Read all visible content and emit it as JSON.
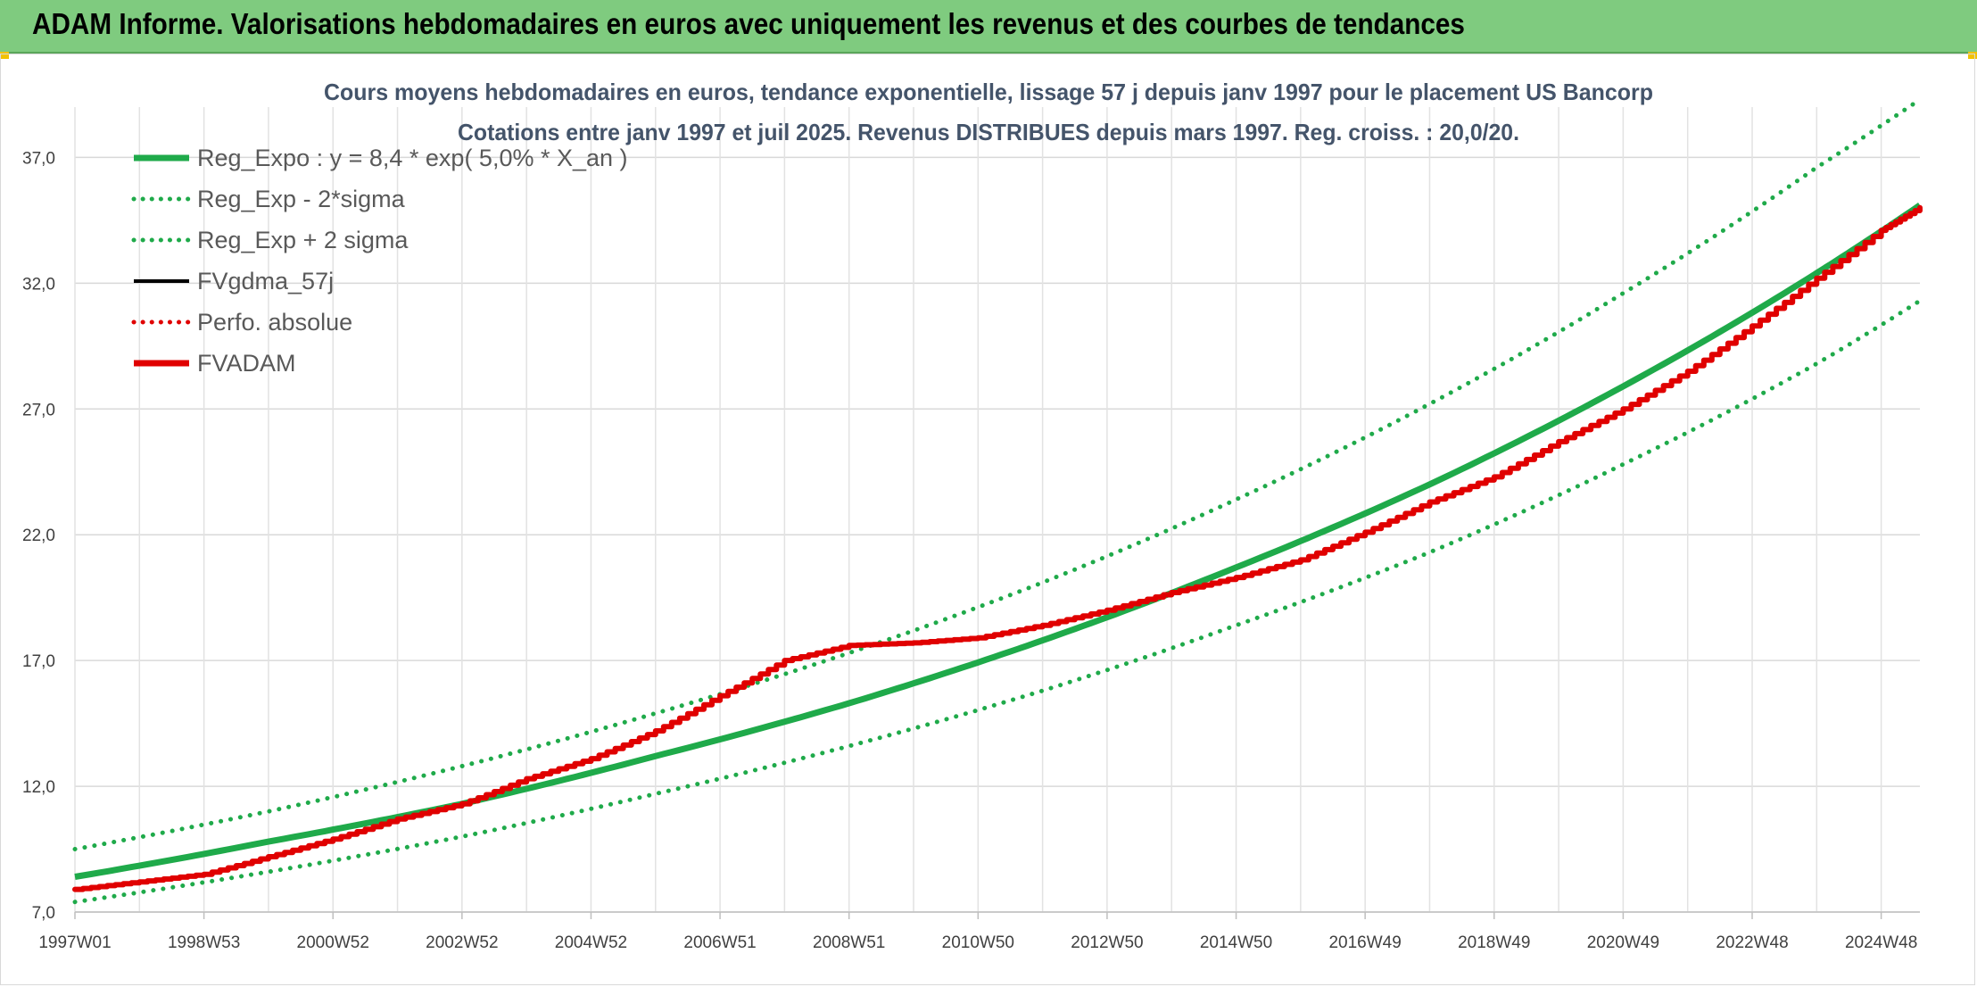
{
  "header": {
    "title": "ADAM Informe. Valorisations hebdomadaires en euros avec uniquement les revenus et des courbes de tendances"
  },
  "chart_data": {
    "type": "line",
    "title_line1": "Cours moyens hebdomadaires en euros, tendance exponentielle, lissage 57 j depuis janv 1997 pour le placement US Bancorp",
    "title_line2": "Cotations entre janv 1997 et juil 2025. Revenus DISTRIBUES depuis mars 1997. Reg. croiss. : 20,0/20.",
    "xlabel": "",
    "ylabel": "",
    "ylim": [
      7.0,
      39.0
    ],
    "yticks": [
      7.0,
      12.0,
      17.0,
      22.0,
      27.0,
      32.0,
      37.0
    ],
    "ytick_labels": [
      "7,0",
      "12,0",
      "17,0",
      "22,0",
      "27,0",
      "32,0",
      "37,0"
    ],
    "x_range_years": [
      1997.0,
      2025.6
    ],
    "xtick_labels": [
      "1997W01",
      "1998W53",
      "2000W52",
      "2002W52",
      "2004W52",
      "2006W51",
      "2008W51",
      "2010W50",
      "2012W50",
      "2014W50",
      "2016W49",
      "2018W49",
      "2020W49",
      "2022W48",
      "2024W48"
    ],
    "xtick_years": [
      1997.0,
      1999.0,
      2001.0,
      2003.0,
      2005.0,
      2007.0,
      2009.0,
      2011.0,
      2013.0,
      2015.0,
      2017.0,
      2019.0,
      2021.0,
      2023.0,
      2025.0
    ],
    "grid": true,
    "legend_position": "top-left",
    "series": [
      {
        "name": "Reg_Expo : y = 8,4 * exp( 5,0% *  X_an )",
        "color": "#1faa4a",
        "style": "solid-thick",
        "x": [
          1997,
          2000,
          2003,
          2006,
          2009,
          2012,
          2015,
          2018,
          2021,
          2024,
          2025.6
        ],
        "values": [
          8.4,
          9.8,
          11.3,
          13.2,
          15.3,
          17.8,
          20.7,
          24.0,
          27.9,
          32.4,
          35.1
        ]
      },
      {
        "name": "Reg_Exp - 2*sigma",
        "color": "#1faa4a",
        "style": "dotted",
        "x": [
          1997,
          2000,
          2003,
          2006,
          2009,
          2012,
          2015,
          2018,
          2021,
          2024,
          2025.6
        ],
        "values": [
          7.4,
          8.6,
          10.0,
          11.7,
          13.6,
          15.8,
          18.4,
          21.3,
          24.8,
          28.8,
          31.3
        ]
      },
      {
        "name": "Reg_Exp + 2 sigma",
        "color": "#1faa4a",
        "style": "dotted",
        "x": [
          1997,
          2000,
          2003,
          2006,
          2009,
          2012,
          2015,
          2018,
          2021,
          2024,
          2025.6
        ],
        "values": [
          9.5,
          11.0,
          12.8,
          14.9,
          17.3,
          20.1,
          23.4,
          27.2,
          31.6,
          36.6,
          39.3
        ]
      },
      {
        "name": "FVgdma_57j",
        "color": "#000000",
        "style": "solid",
        "x": [
          1997,
          1998,
          1999,
          2000,
          2001,
          2002,
          2003,
          2004,
          2005,
          2006,
          2007,
          2008,
          2009,
          2010,
          2011,
          2012,
          2013,
          2014,
          2015,
          2016,
          2017,
          2018,
          2019,
          2020,
          2021,
          2022,
          2023,
          2024,
          2025,
          2025.6
        ],
        "values": [
          7.9,
          8.2,
          8.5,
          9.2,
          9.9,
          10.7,
          11.3,
          12.3,
          13.1,
          14.2,
          15.6,
          17.0,
          17.6,
          17.7,
          17.9,
          18.4,
          19.0,
          19.7,
          20.3,
          21.0,
          22.1,
          23.3,
          24.3,
          25.7,
          27.0,
          28.5,
          30.3,
          32.2,
          34.1,
          35.0
        ]
      },
      {
        "name": "Perfo. absolue",
        "color": "#e00000",
        "style": "dotted",
        "x": [],
        "values": []
      },
      {
        "name": "FVADAM",
        "color": "#e00000",
        "style": "solid-thick",
        "x": [
          1997,
          1998,
          1999,
          2000,
          2001,
          2002,
          2003,
          2004,
          2005,
          2006,
          2007,
          2008,
          2009,
          2010,
          2011,
          2012,
          2013,
          2014,
          2015,
          2016,
          2017,
          2018,
          2019,
          2020,
          2021,
          2022,
          2023,
          2024,
          2025,
          2025.6
        ],
        "values": [
          7.9,
          8.2,
          8.5,
          9.2,
          9.9,
          10.7,
          11.3,
          12.3,
          13.1,
          14.2,
          15.6,
          17.0,
          17.6,
          17.7,
          17.9,
          18.4,
          19.0,
          19.7,
          20.3,
          21.0,
          22.1,
          23.3,
          24.3,
          25.7,
          27.0,
          28.5,
          30.3,
          32.2,
          34.1,
          35.0
        ]
      }
    ]
  }
}
